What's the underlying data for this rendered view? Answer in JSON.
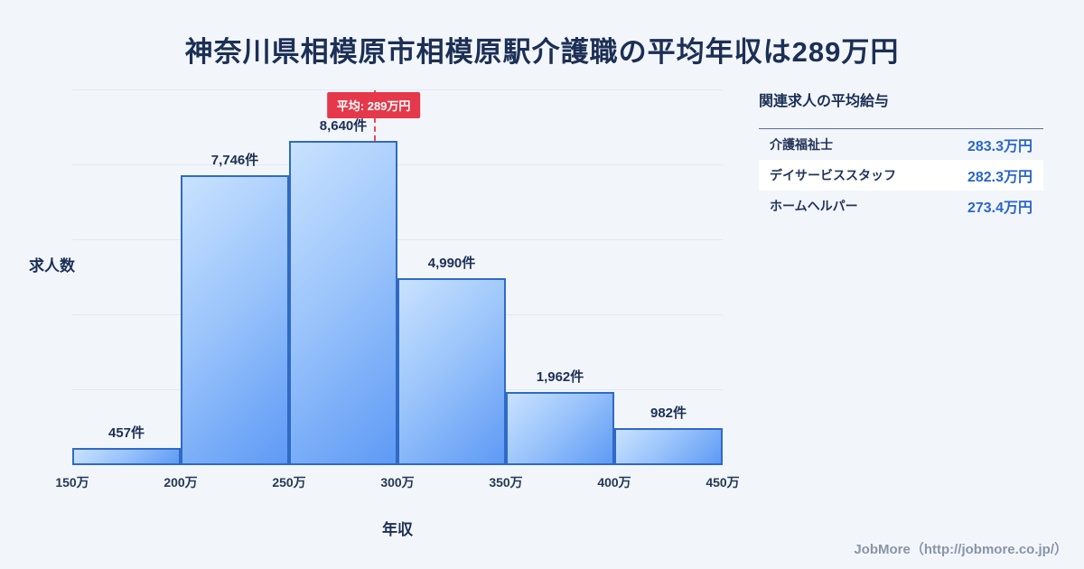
{
  "title": "神奈川県相模原市相模原駅介護職の平均年収は289万円",
  "chart_data": {
    "type": "bar",
    "title": "神奈川県相模原市相模原駅介護職の平均年収は289万円",
    "xlabel": "年収",
    "ylabel": "求人数",
    "x_tick_labels": [
      "150万",
      "200万",
      "250万",
      "300万",
      "350万",
      "400万",
      "450万"
    ],
    "x_min": 150,
    "x_max": 450,
    "values": [
      457,
      7746,
      8640,
      4990,
      1962,
      982
    ],
    "value_labels": [
      "457件",
      "7,746件",
      "8,640件",
      "4,990件",
      "1,962件",
      "982件"
    ],
    "ylim": [
      0,
      10000
    ],
    "grid_divisions": 5,
    "grid": "on",
    "average": {
      "value": 289,
      "label": "平均: 289万円"
    },
    "colors": {
      "bar_fill_light": "#c9e2ff",
      "bar_fill_dark": "#5e9af5",
      "bar_border": "#2f6ac5",
      "average_line": "#e84a55",
      "average_badge_bg": "#e5394b",
      "title_text": "#1c2f55",
      "background": "#f2f6fb"
    }
  },
  "side_panel": {
    "heading": "関連求人の平均給与",
    "rows": [
      {
        "label": "介護福祉士",
        "value": "283.3万円"
      },
      {
        "label": "デイサービススタッフ",
        "value": "282.3万円"
      },
      {
        "label": "ホームヘルパー",
        "value": "273.4万円"
      }
    ],
    "value_color": "#2a66cc"
  },
  "footer": {
    "credit": "JobMore（http://jobmore.co.jp/）"
  }
}
